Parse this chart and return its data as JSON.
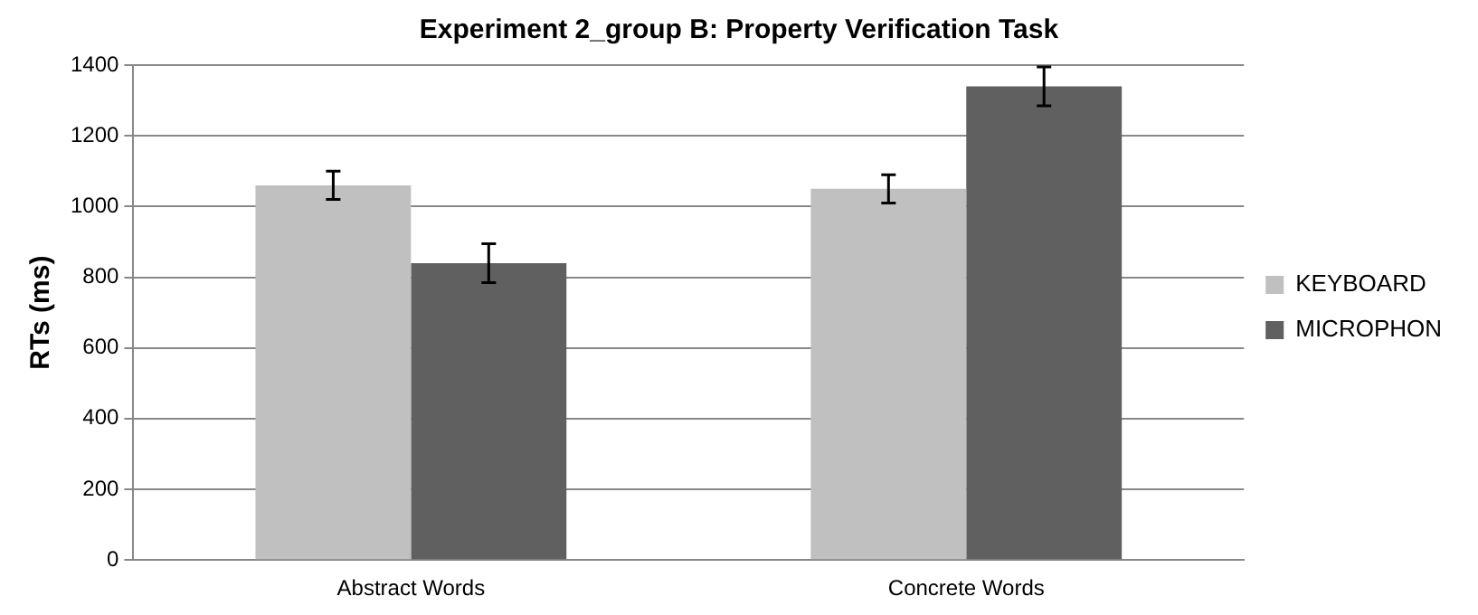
{
  "chart_data": {
    "type": "bar",
    "title": "Experiment 2_group B: Property Verification Task",
    "ylabel": "RTs (ms)",
    "categories": [
      "Abstract Words",
      "Concrete Words"
    ],
    "series": [
      {
        "name": "KEYBOARD",
        "color": "#c0c0c0",
        "values": [
          1060,
          1050
        ],
        "errors": [
          40,
          40
        ]
      },
      {
        "name": "MICROPHON",
        "color": "#606060",
        "values": [
          840,
          1340
        ],
        "errors": [
          55,
          55
        ]
      }
    ],
    "ylim": [
      0,
      1400
    ],
    "yticks": [
      0,
      200,
      400,
      600,
      800,
      1000,
      1200,
      1400
    ],
    "grid": "y",
    "legend": "right"
  }
}
